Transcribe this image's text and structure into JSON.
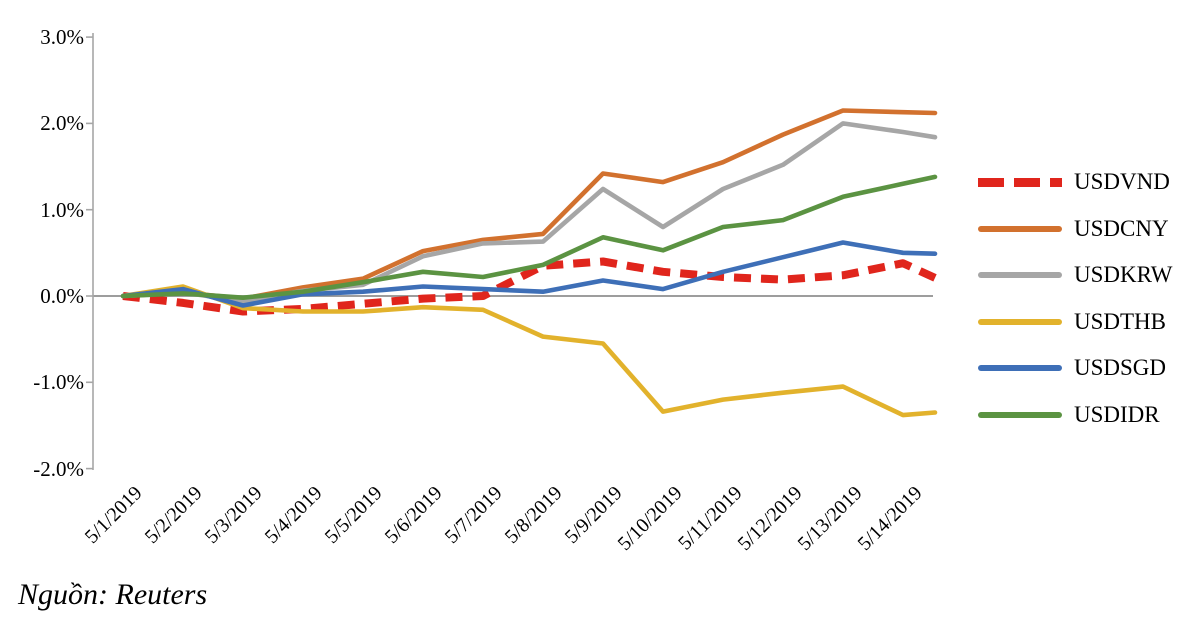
{
  "chart_data": {
    "type": "line",
    "title": "",
    "x_categories": [
      "5/1/2019",
      "5/2/2019",
      "5/3/2019",
      "5/4/2019",
      "5/5/2019",
      "5/6/2019",
      "5/7/2019",
      "5/8/2019",
      "5/9/2019",
      "5/10/2019",
      "5/11/2019",
      "5/12/2019",
      "5/13/2019",
      "5/14/2019"
    ],
    "y_axis": {
      "tick_labels": [
        "3.0%",
        "2.0%",
        "1.0%",
        "0.0%",
        "-1.0%",
        "-2.0%"
      ],
      "tick_values": [
        3.0,
        2.0,
        1.0,
        0.0,
        -1.0,
        -2.0
      ],
      "ylim": [
        -2.0,
        3.0
      ],
      "unit": "percent"
    },
    "grid": "zero-line-only",
    "series": [
      {
        "name": "USDVND",
        "color": "#e0251c",
        "style": "dashed",
        "values": [
          0.0,
          -0.08,
          -0.18,
          -0.15,
          -0.09,
          -0.03,
          0.0,
          0.35,
          0.4,
          0.28,
          0.22,
          0.19,
          0.24,
          0.38
        ],
        "value_at_plot_right_edge": 0.21
      },
      {
        "name": "USDCNY",
        "color": "#d2712e",
        "style": "solid",
        "values": [
          0.0,
          0.04,
          -0.03,
          0.1,
          0.2,
          0.52,
          0.65,
          0.72,
          1.42,
          1.32,
          1.55,
          1.87,
          2.15,
          2.13
        ],
        "value_at_plot_right_edge": 2.12
      },
      {
        "name": "USDKRW",
        "color": "#a6a6a6",
        "style": "solid",
        "values": [
          0.0,
          0.04,
          -0.06,
          0.06,
          0.13,
          0.46,
          0.61,
          0.63,
          1.24,
          0.8,
          1.24,
          1.52,
          2.0,
          1.9
        ],
        "value_at_plot_right_edge": 1.84
      },
      {
        "name": "USDTHB",
        "color": "#e2b22c",
        "style": "solid",
        "values": [
          0.0,
          0.11,
          -0.14,
          -0.18,
          -0.18,
          -0.13,
          -0.16,
          -0.47,
          -0.55,
          -1.34,
          -1.2,
          -1.12,
          -1.05,
          -1.38
        ],
        "value_at_plot_right_edge": -1.35
      },
      {
        "name": "USDSGD",
        "color": "#3e6fb7",
        "style": "solid",
        "values": [
          0.0,
          0.08,
          -0.11,
          0.02,
          0.05,
          0.11,
          0.08,
          0.05,
          0.18,
          0.08,
          0.28,
          0.45,
          0.62,
          0.5
        ],
        "value_at_plot_right_edge": 0.49
      },
      {
        "name": "USDIDR",
        "color": "#5b9342",
        "style": "solid",
        "values": [
          0.0,
          0.03,
          -0.02,
          0.05,
          0.16,
          0.28,
          0.22,
          0.36,
          0.68,
          0.53,
          0.8,
          0.88,
          1.15,
          1.3
        ],
        "value_at_plot_right_edge": 1.38
      }
    ],
    "legend": {
      "position": "right",
      "entries": [
        "USDVND",
        "USDCNY",
        "USDKRW",
        "USDTHB",
        "USDSGD",
        "USDIDR"
      ]
    },
    "source_note": "Nguồn: Reuters"
  }
}
